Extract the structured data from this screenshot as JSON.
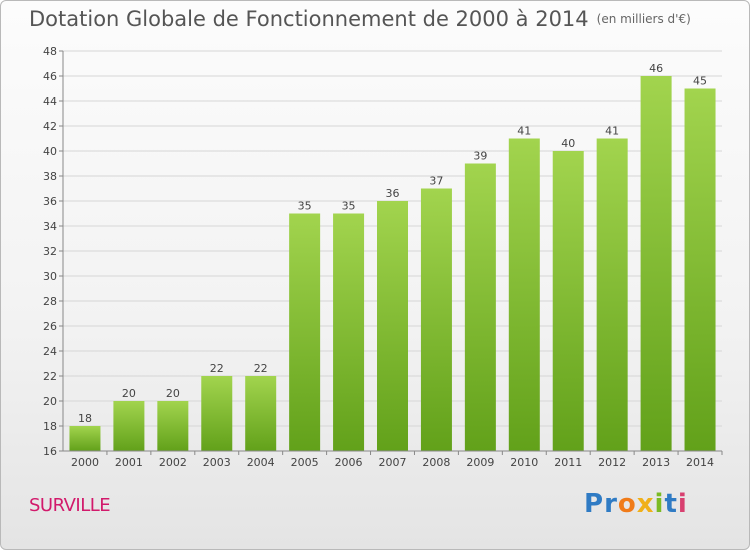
{
  "title": "Dotation Globale de Fonctionnement de 2000 à 2014",
  "unit": "(en milliers d'€)",
  "commune": "SURVILLE",
  "logo": {
    "letters": [
      "P",
      "r",
      "o",
      "x",
      "i",
      "t",
      "i"
    ],
    "colors": [
      "#2f7bc4",
      "#2f7bc4",
      "#f07b19",
      "#f0b019",
      "#7bbb24",
      "#2f7bc4",
      "#d84070"
    ]
  },
  "colors": {
    "bar_top": "#a2d44e",
    "bar_bottom": "#62a11a",
    "grid": "#d6d6d6",
    "axis": "#888888"
  },
  "chart_data": {
    "type": "bar",
    "title": "Dotation Globale de Fonctionnement de 2000 à 2014",
    "categories": [
      "2000",
      "2001",
      "2002",
      "2003",
      "2004",
      "2005",
      "2006",
      "2007",
      "2008",
      "2009",
      "2010",
      "2011",
      "2012",
      "2013",
      "2014"
    ],
    "values": [
      18,
      20,
      20,
      22,
      22,
      35,
      35,
      36,
      37,
      39,
      41,
      40,
      41,
      46,
      45
    ],
    "ylim": [
      16,
      48
    ],
    "yticks": [
      16,
      18,
      20,
      22,
      24,
      26,
      28,
      30,
      32,
      34,
      36,
      38,
      40,
      42,
      44,
      46,
      48
    ],
    "grid": true
  }
}
